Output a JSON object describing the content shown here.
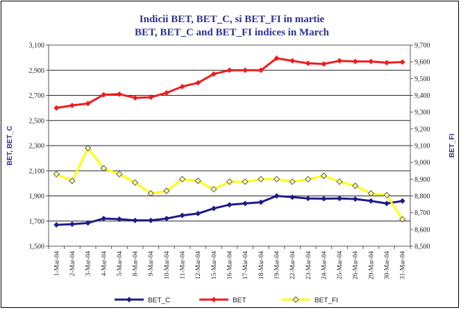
{
  "chart_data": {
    "type": "line",
    "title": [
      "Indicii BET, BET_C, si BET_FI in martie",
      "BET, BET_C and BET_FI indices in March"
    ],
    "ylabel_left": "BET, BET_C",
    "ylabel_right": "BET_FI",
    "ylim_left": [
      1500,
      3100
    ],
    "ylim_right": [
      8500,
      9700
    ],
    "yticks_left": [
      1500,
      1700,
      1900,
      2100,
      2300,
      2500,
      2700,
      2900,
      3100
    ],
    "yticks_left_labels": [
      "1,500",
      "1,700",
      "1,900",
      "2,100",
      "2,300",
      "2,500",
      "2,700",
      "2,900",
      "3,100"
    ],
    "yticks_right": [
      8500,
      8600,
      8700,
      8800,
      8900,
      9000,
      9100,
      9200,
      9300,
      9400,
      9500,
      9600,
      9700
    ],
    "yticks_right_labels": [
      "8,500",
      "8,600",
      "8,700",
      "8,800",
      "8,900",
      "9,000",
      "9,100",
      "9,200",
      "9,300",
      "9,400",
      "9,500",
      "9,600",
      "9,700"
    ],
    "categories": [
      "1-Mar-04",
      "2-Mar-04",
      "3-Mar-04",
      "4-Mar-04",
      "5-Mar-04",
      "8-Mar-04",
      "9-Mar-04",
      "10-Mar-04",
      "11-Mar-04",
      "12-Mar-04",
      "15-Mar-04",
      "16-Mar-04",
      "17-Mar-04",
      "18-Mar-04",
      "19-Mar-04",
      "22-Mar-04",
      "23-Mar-04",
      "24-Mar-04",
      "25-Mar-04",
      "26-Mar-04",
      "29-Mar-04",
      "30-Mar-04",
      "31-Mar-04"
    ],
    "grid": true,
    "legend_position": "bottom",
    "series": [
      {
        "name": "BET_C",
        "axis": "left",
        "color": "#1f1a8c",
        "marker": "diamond",
        "values": [
          1670,
          1675,
          1685,
          1720,
          1715,
          1705,
          1705,
          1720,
          1745,
          1760,
          1800,
          1830,
          1840,
          1850,
          1900,
          1890,
          1880,
          1878,
          1880,
          1875,
          1860,
          1840,
          1860
        ]
      },
      {
        "name": "BET",
        "axis": "left",
        "color": "#ee1c1c",
        "marker": "diamond",
        "values": [
          2600,
          2620,
          2635,
          2705,
          2710,
          2680,
          2685,
          2720,
          2770,
          2800,
          2870,
          2900,
          2900,
          2900,
          2995,
          2975,
          2955,
          2950,
          2975,
          2970,
          2970,
          2960,
          2965
        ]
      },
      {
        "name": "BET_FI",
        "axis": "right",
        "color": "#ffff00",
        "marker": "diamond-open",
        "values": [
          8930,
          8890,
          9085,
          8965,
          8930,
          8880,
          8815,
          8830,
          8900,
          8890,
          8840,
          8885,
          8885,
          8900,
          8900,
          8885,
          8900,
          8920,
          8885,
          8860,
          8815,
          8805,
          8660
        ]
      }
    ]
  }
}
